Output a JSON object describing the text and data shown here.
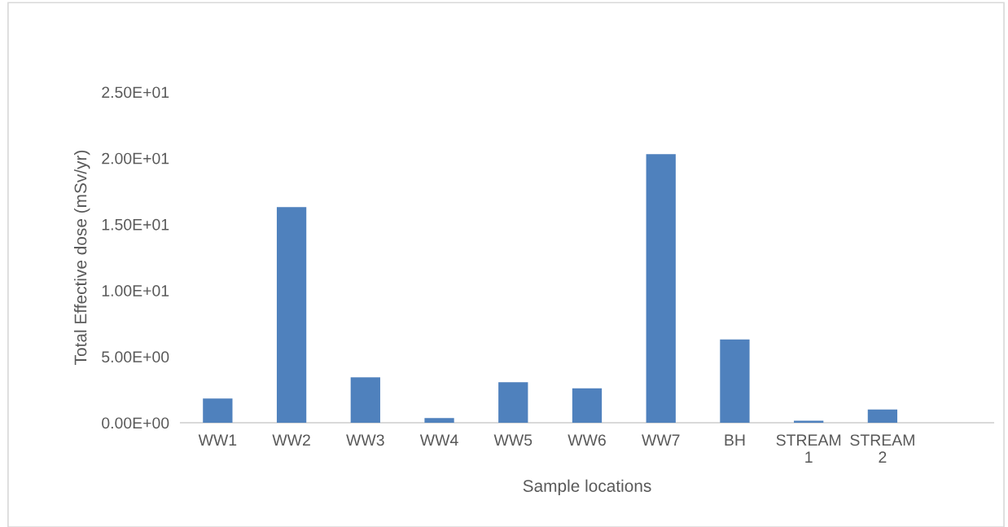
{
  "chart_data": {
    "type": "bar",
    "categories": [
      "WW1",
      "WW2",
      "WW3",
      "WW4",
      "WW5",
      "WW6",
      "WW7",
      "BH",
      "STREAM\n1",
      "STREAM\n2",
      null
    ],
    "values": [
      1.83,
      16.3,
      3.44,
      0.35,
      3.07,
      2.6,
      20.3,
      6.3,
      0.15,
      1.0,
      null
    ],
    "color": "#4f81bd",
    "xlabel": "Sample locations",
    "ylabel": "Total Effective dose (mSv/yr)",
    "ylim": [
      0,
      25
    ],
    "yticks": [
      {
        "value": 0,
        "label": "0.00E+00"
      },
      {
        "value": 5,
        "label": "5.00E+00"
      },
      {
        "value": 10,
        "label": "1.00E+01"
      },
      {
        "value": 15,
        "label": "1.50E+01"
      },
      {
        "value": 20,
        "label": "2.00E+01"
      },
      {
        "value": 25,
        "label": "2.50E+01"
      }
    ],
    "grid": false,
    "legend": false
  }
}
